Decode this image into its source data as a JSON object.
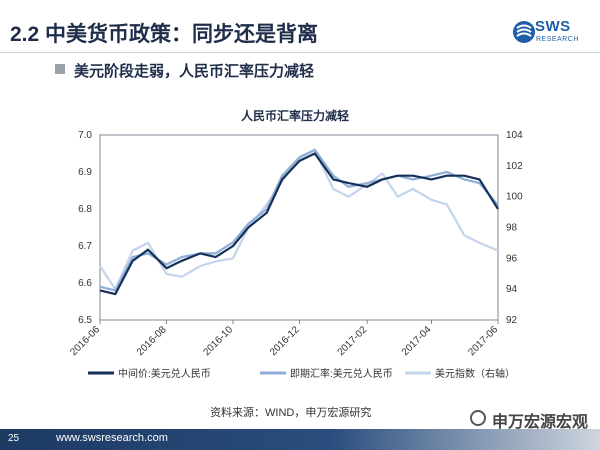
{
  "slide": {
    "title": "2.2 中美货币政策：同步还是背离",
    "subtitle": "美元阶段走弱，人民币汇率压力减轻",
    "logo_text": "SWS",
    "logo_sub": "RESEARCH",
    "source": "资料来源：WIND，申万宏源研究",
    "page_number": "25",
    "footer_url": "www.swsresearch.com",
    "wechat_label": "申万宏源宏观",
    "colors": {
      "navy": "#1f2d4a",
      "accent_blue": "#1f5fa8",
      "series_mid": "#14305a",
      "series_forward": "#8faed6",
      "series_dxy": "#c4d4ea"
    }
  },
  "chart_data": {
    "type": "line",
    "title": "人民币汇率压力减轻",
    "x_ticks": [
      "2016-06",
      "2016-08",
      "2016-10",
      "2016-12",
      "2017-02",
      "2017-04",
      "2017-06"
    ],
    "left_axis": {
      "ylim": [
        6.5,
        7.0
      ],
      "ticks": [
        "6.5",
        "6.6",
        "6.7",
        "6.8",
        "6.9",
        "7.0"
      ]
    },
    "right_axis": {
      "ylim": [
        92,
        104
      ],
      "ticks": [
        "92",
        "94",
        "96",
        "98",
        "100",
        "102",
        "104"
      ]
    },
    "legend_position": "bottom",
    "grid": false,
    "series": [
      {
        "name": "中间价:美元兑人民币",
        "axis": "left",
        "x": [
          "2016-06",
          "2016-06-15",
          "2016-07",
          "2016-07-15",
          "2016-08",
          "2016-08-15",
          "2016-09",
          "2016-09-15",
          "2016-10",
          "2016-10-15",
          "2016-11",
          "2016-11-15",
          "2016-12",
          "2016-12-15",
          "2017-01",
          "2017-01-15",
          "2017-02",
          "2017-02-15",
          "2017-03",
          "2017-03-15",
          "2017-04",
          "2017-04-15",
          "2017-05",
          "2017-05-15",
          "2017-06"
        ],
        "values": [
          6.58,
          6.57,
          6.66,
          6.69,
          6.64,
          6.66,
          6.68,
          6.67,
          6.7,
          6.75,
          6.79,
          6.88,
          6.93,
          6.95,
          6.88,
          6.87,
          6.86,
          6.88,
          6.89,
          6.89,
          6.88,
          6.89,
          6.89,
          6.88,
          6.8
        ]
      },
      {
        "name": "即期汇率:美元兑人民币",
        "axis": "left",
        "x": [
          "2016-06",
          "2016-06-15",
          "2016-07",
          "2016-07-15",
          "2016-08",
          "2016-08-15",
          "2016-09",
          "2016-09-15",
          "2016-10",
          "2016-10-15",
          "2016-11",
          "2016-11-15",
          "2016-12",
          "2016-12-15",
          "2017-01",
          "2017-01-15",
          "2017-02",
          "2017-02-15",
          "2017-03",
          "2017-03-15",
          "2017-04",
          "2017-04-15",
          "2017-05",
          "2017-05-15",
          "2017-06"
        ],
        "values": [
          6.59,
          6.58,
          6.67,
          6.68,
          6.65,
          6.67,
          6.68,
          6.68,
          6.71,
          6.76,
          6.8,
          6.89,
          6.94,
          6.96,
          6.89,
          6.86,
          6.87,
          6.88,
          6.89,
          6.88,
          6.89,
          6.9,
          6.88,
          6.87,
          6.81
        ]
      },
      {
        "name": "美元指数（右轴）",
        "axis": "right",
        "x": [
          "2016-06",
          "2016-06-15",
          "2016-07",
          "2016-07-15",
          "2016-08",
          "2016-08-15",
          "2016-09",
          "2016-09-15",
          "2016-10",
          "2016-10-15",
          "2016-11",
          "2016-11-15",
          "2016-12",
          "2016-12-15",
          "2017-01",
          "2017-01-15",
          "2017-02",
          "2017-02-15",
          "2017-03",
          "2017-03-15",
          "2017-04",
          "2017-04-15",
          "2017-05",
          "2017-05-15",
          "2017-06"
        ],
        "values": [
          95.5,
          94.0,
          96.5,
          97.0,
          95.0,
          94.8,
          95.5,
          95.8,
          96.0,
          98.0,
          99.5,
          101.0,
          102.5,
          103.0,
          100.5,
          100.0,
          100.8,
          101.5,
          100.0,
          100.5,
          99.8,
          99.5,
          97.5,
          97.0,
          96.5
        ]
      }
    ]
  }
}
